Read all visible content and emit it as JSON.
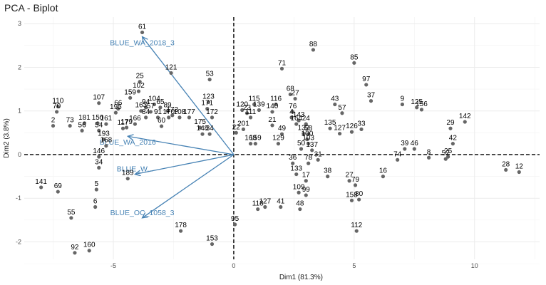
{
  "title": "PCA - Biplot",
  "chart_data": {
    "type": "scatter",
    "title": "PCA - Biplot",
    "xlabel": "Dim1 (81.3%)",
    "ylabel": "Dim2 (3.8%)",
    "xlim": [
      -8.7,
      12.7
    ],
    "ylim": [
      -2.4,
      3.15
    ],
    "x_ticks": [
      -5,
      0,
      5,
      10
    ],
    "y_ticks": [
      -2,
      -1,
      0,
      1,
      2,
      3
    ],
    "grid": true,
    "reference_lines": [
      {
        "axis": "x",
        "value": 0,
        "style": "dashed"
      },
      {
        "axis": "y",
        "value": 0,
        "style": "dashed"
      }
    ],
    "point_color": "#666666",
    "arrow_color": "#4682b4",
    "points": [
      {
        "label": "61",
        "x": -3.8,
        "y": 2.8
      },
      {
        "label": "88",
        "x": 3.3,
        "y": 2.4
      },
      {
        "label": "85",
        "x": 5.0,
        "y": 2.1
      },
      {
        "label": "71",
        "x": 2.0,
        "y": 1.97
      },
      {
        "label": "121",
        "x": -2.6,
        "y": 1.87
      },
      {
        "label": "53",
        "x": -1.0,
        "y": 1.72
      },
      {
        "label": "25",
        "x": -3.9,
        "y": 1.67
      },
      {
        "label": "97",
        "x": 5.5,
        "y": 1.6
      },
      {
        "label": "102",
        "x": -3.95,
        "y": 1.45
      },
      {
        "label": "68",
        "x": 2.35,
        "y": 1.38
      },
      {
        "label": "159",
        "x": -4.3,
        "y": 1.3
      },
      {
        "label": "27",
        "x": 2.55,
        "y": 1.28
      },
      {
        "label": "37",
        "x": 5.7,
        "y": 1.23
      },
      {
        "label": "123",
        "x": -1.05,
        "y": 1.2
      },
      {
        "label": "107",
        "x": -5.6,
        "y": 1.18
      },
      {
        "label": "104",
        "x": -3.3,
        "y": 1.15
      },
      {
        "label": "115",
        "x": 0.85,
        "y": 1.15
      },
      {
        "label": "116",
        "x": 1.75,
        "y": 1.15
      },
      {
        "label": "43",
        "x": 4.2,
        "y": 1.15
      },
      {
        "label": "9",
        "x": 7.0,
        "y": 1.15
      },
      {
        "label": "110",
        "x": -7.3,
        "y": 1.1
      },
      {
        "label": "94",
        "x": -3.65,
        "y": 1.08
      },
      {
        "label": "65",
        "x": -3.05,
        "y": 1.08
      },
      {
        "label": "66",
        "x": -4.8,
        "y": 1.05
      },
      {
        "label": "171",
        "x": -1.1,
        "y": 1.05
      },
      {
        "label": "125",
        "x": 7.6,
        "y": 1.08
      },
      {
        "label": "163",
        "x": -3.85,
        "y": 1.0
      },
      {
        "label": "57",
        "x": -3.45,
        "y": 0.98
      },
      {
        "label": "89",
        "x": -2.75,
        "y": 1.0
      },
      {
        "label": "120",
        "x": 0.35,
        "y": 1.02
      },
      {
        "label": "139",
        "x": 1.05,
        "y": 1.02
      },
      {
        "label": "156",
        "x": 7.8,
        "y": 1.03
      },
      {
        "label": "70",
        "x": -7.35,
        "y": 0.98
      },
      {
        "label": "195",
        "x": -4.9,
        "y": 0.96
      },
      {
        "label": "76",
        "x": 2.45,
        "y": 0.98
      },
      {
        "label": "140",
        "x": 1.6,
        "y": 0.98
      },
      {
        "label": "57",
        "x": 4.5,
        "y": 0.95
      },
      {
        "label": "23",
        "x": 0.55,
        "y": 0.95
      },
      {
        "label": "173",
        "x": -2.55,
        "y": 0.9
      },
      {
        "label": "91",
        "x": -3.15,
        "y": 0.85
      },
      {
        "label": "170",
        "x": -2.7,
        "y": 0.85
      },
      {
        "label": "177",
        "x": -1.85,
        "y": 0.85
      },
      {
        "label": "172",
        "x": -0.9,
        "y": 0.85
      },
      {
        "label": "84",
        "x": -3.65,
        "y": 0.85
      },
      {
        "label": "111",
        "x": 0.7,
        "y": 0.85
      },
      {
        "label": "4",
        "x": 2.4,
        "y": 0.85
      },
      {
        "label": "108",
        "x": -2.25,
        "y": 0.85
      },
      {
        "label": "143",
        "x": 2.7,
        "y": 0.78
      },
      {
        "label": "142",
        "x": 9.6,
        "y": 0.75
      },
      {
        "label": "181",
        "x": -6.2,
        "y": 0.72
      },
      {
        "label": "150",
        "x": -5.65,
        "y": 0.72
      },
      {
        "label": "161",
        "x": -5.3,
        "y": 0.7
      },
      {
        "label": "60",
        "x": -3.0,
        "y": 0.65
      },
      {
        "label": "2",
        "x": -7.5,
        "y": 0.66
      },
      {
        "label": "73",
        "x": -6.8,
        "y": 0.66
      },
      {
        "label": "166",
        "x": -4.1,
        "y": 0.7
      },
      {
        "label": "21",
        "x": 1.6,
        "y": 0.67
      },
      {
        "label": "164",
        "x": 2.6,
        "y": 0.7
      },
      {
        "label": "24",
        "x": 3.0,
        "y": 0.7
      },
      {
        "label": "29",
        "x": 9.0,
        "y": 0.6
      },
      {
        "label": "179",
        "x": -4.45,
        "y": 0.62
      },
      {
        "label": "117",
        "x": -4.6,
        "y": 0.6
      },
      {
        "label": "56",
        "x": -6.3,
        "y": 0.55
      },
      {
        "label": "54",
        "x": -5.6,
        "y": 0.55
      },
      {
        "label": "175",
        "x": -1.4,
        "y": 0.62
      },
      {
        "label": "135",
        "x": 4.0,
        "y": 0.6
      },
      {
        "label": "33",
        "x": 5.3,
        "y": 0.58
      },
      {
        "label": "201",
        "x": 0.4,
        "y": 0.58
      },
      {
        "label": "22",
        "x": 0.1,
        "y": 0.5
      },
      {
        "label": "49",
        "x": 2.0,
        "y": 0.47
      },
      {
        "label": "132",
        "x": 2.9,
        "y": 0.48
      },
      {
        "label": "126",
        "x": 4.9,
        "y": 0.52
      },
      {
        "label": "127",
        "x": 4.4,
        "y": 0.48
      },
      {
        "label": "58",
        "x": 3.1,
        "y": 0.47
      },
      {
        "label": "148",
        "x": -1.3,
        "y": 0.47
      },
      {
        "label": "34",
        "x": -1.0,
        "y": 0.47
      },
      {
        "label": "193",
        "x": -5.4,
        "y": 0.35
      },
      {
        "label": "100",
        "x": 3.05,
        "y": 0.35
      },
      {
        "label": "168",
        "x": -5.3,
        "y": 0.2
      },
      {
        "label": "168",
        "x": 0.7,
        "y": 0.25
      },
      {
        "label": "159",
        "x": 0.9,
        "y": 0.25
      },
      {
        "label": "129",
        "x": 1.85,
        "y": 0.25
      },
      {
        "label": "103",
        "x": 3.1,
        "y": 0.25
      },
      {
        "label": "42",
        "x": 9.1,
        "y": 0.25
      },
      {
        "label": "39",
        "x": 7.1,
        "y": 0.13
      },
      {
        "label": "46",
        "x": 7.5,
        "y": 0.13
      },
      {
        "label": "50",
        "x": 2.8,
        "y": 0.13
      },
      {
        "label": "137",
        "x": 3.25,
        "y": 0.1
      },
      {
        "label": "146",
        "x": -5.6,
        "y": -0.05
      },
      {
        "label": "74",
        "x": 6.8,
        "y": -0.12
      },
      {
        "label": "8",
        "x": 8.1,
        "y": -0.07
      },
      {
        "label": "52",
        "x": 8.8,
        "y": -0.1
      },
      {
        "label": "25",
        "x": 8.9,
        "y": -0.05
      },
      {
        "label": "28",
        "x": 11.3,
        "y": -0.35
      },
      {
        "label": "12",
        "x": 11.85,
        "y": -0.4
      },
      {
        "label": "31",
        "x": 3.5,
        "y": -0.12
      },
      {
        "label": "36",
        "x": 2.45,
        "y": -0.2
      },
      {
        "label": "78",
        "x": 3.1,
        "y": -0.2
      },
      {
        "label": "34",
        "x": -5.6,
        "y": -0.3
      },
      {
        "label": "16",
        "x": 6.2,
        "y": -0.5
      },
      {
        "label": "38",
        "x": 3.9,
        "y": -0.5
      },
      {
        "label": "133",
        "x": 2.6,
        "y": -0.45
      },
      {
        "label": "27",
        "x": 4.8,
        "y": -0.6
      },
      {
        "label": "79",
        "x": 5.05,
        "y": -0.7
      },
      {
        "label": "189",
        "x": -4.4,
        "y": -0.55
      },
      {
        "label": "17",
        "x": 3.0,
        "y": -0.6
      },
      {
        "label": "141",
        "x": -8.0,
        "y": -0.75
      },
      {
        "label": "69",
        "x": -7.3,
        "y": -0.85
      },
      {
        "label": "5",
        "x": -5.7,
        "y": -0.8
      },
      {
        "label": "109",
        "x": 2.7,
        "y": -0.87
      },
      {
        "label": "99",
        "x": 3.0,
        "y": -0.93
      },
      {
        "label": "158",
        "x": 4.9,
        "y": -1.05
      },
      {
        "label": "80",
        "x": 5.2,
        "y": -1.03
      },
      {
        "label": "6",
        "x": -5.75,
        "y": -1.2
      },
      {
        "label": "41",
        "x": 1.95,
        "y": -1.2
      },
      {
        "label": "48",
        "x": 2.75,
        "y": -1.25
      },
      {
        "label": "127",
        "x": 1.3,
        "y": -1.2
      },
      {
        "label": "118",
        "x": 1.0,
        "y": -1.25
      },
      {
        "label": "55",
        "x": -6.75,
        "y": -1.45
      },
      {
        "label": "178",
        "x": -2.2,
        "y": -1.75
      },
      {
        "label": "112",
        "x": 5.1,
        "y": -1.75
      },
      {
        "label": "95",
        "x": 0.05,
        "y": -1.6
      },
      {
        "label": "153",
        "x": -0.9,
        "y": -2.05
      },
      {
        "label": "160",
        "x": -6.0,
        "y": -2.2
      },
      {
        "label": "92",
        "x": -6.6,
        "y": -2.25
      }
    ],
    "arrows": [
      {
        "label": "BLUE_WA_2018_3",
        "x": -3.8,
        "y": 2.7
      },
      {
        "label": "BLUE_OC_1058_3",
        "x": -3.8,
        "y": -1.45
      },
      {
        "label": "BLUE_WA_2016",
        "x": -4.4,
        "y": 0.42
      },
      {
        "label": "BLUE_W...",
        "x": -4.1,
        "y": -0.45
      }
    ]
  }
}
